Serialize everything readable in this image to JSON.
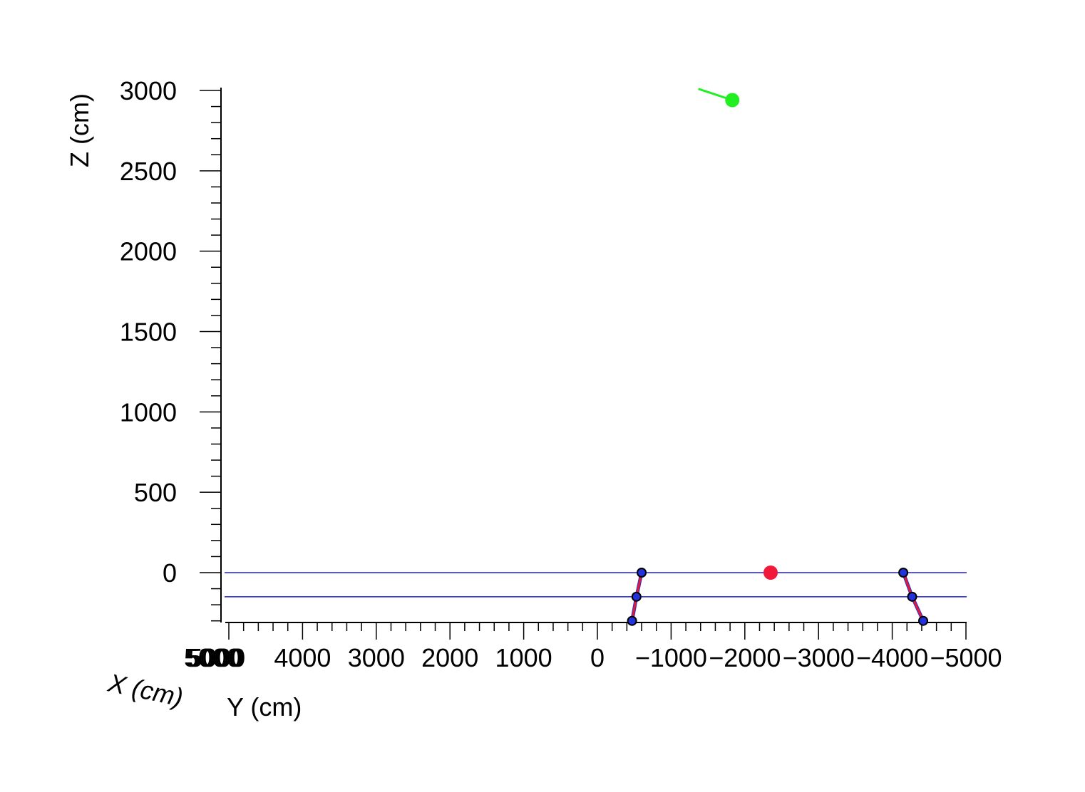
{
  "chart_data": {
    "type": "scatter",
    "title": "",
    "xlabel": "X (cm)",
    "ylabel": "Y (cm)",
    "zlabel": "Z (cm)",
    "y_axis": {
      "range": [
        5000,
        -5000
      ],
      "ticks": [
        4000,
        3000,
        2000,
        1000,
        0,
        -1000,
        -2000,
        -3000,
        -4000,
        -5000
      ],
      "tick_labels": [
        "4000",
        "3000",
        "2000",
        "1000",
        "0",
        "−1000",
        "−2000",
        "−3000",
        "−4000",
        "−5000"
      ],
      "overlapped_labels": "5000"
    },
    "z_axis": {
      "range": [
        -300,
        3000
      ],
      "ticks": [
        3000,
        2500,
        2000,
        1500,
        1000,
        500,
        0
      ],
      "tick_labels": [
        "3000",
        "2500",
        "2000",
        "1500",
        "1000",
        "500",
        "0"
      ]
    },
    "grid": false,
    "legend": "none",
    "colors": {
      "axis": "#000000",
      "plane_lines": "#1f1fd6",
      "track": "#e8192c",
      "hit_outer": "#000000",
      "hit_inner": "#2233dd",
      "vertex": "#f2183a",
      "source": "#22ee22"
    },
    "series": [
      {
        "kind": "plane-lines",
        "z": [
          0,
          -150
        ]
      },
      {
        "kind": "track",
        "points": [
          {
            "y": -600,
            "z": 0
          },
          {
            "y": -530,
            "z": -150
          },
          {
            "y": -470,
            "z": -300
          }
        ]
      },
      {
        "kind": "track",
        "points": [
          {
            "y": -4150,
            "z": 0
          },
          {
            "y": -4270,
            "z": -150
          },
          {
            "y": -4420,
            "z": -300
          }
        ]
      },
      {
        "kind": "vertex",
        "points": [
          {
            "y": -2350,
            "z": 0
          }
        ]
      },
      {
        "kind": "source",
        "points": [
          {
            "y": -1830,
            "z": 2940
          }
        ],
        "direction_tail": {
          "y": -1370,
          "z": 3010
        }
      }
    ]
  }
}
